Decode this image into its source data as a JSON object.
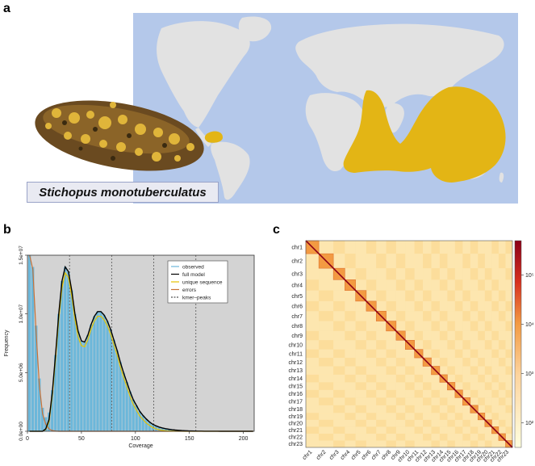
{
  "figure": {
    "panel_a_letter": "a",
    "panel_b_letter": "b",
    "panel_c_letter": "c",
    "species_name": "Stichopus monotuberculatus"
  },
  "colors": {
    "ocean": "#b4c8ea",
    "land": "#e2e2e2",
    "distribution": "#e3b515",
    "plot_bg": "#d3d3d3",
    "histogram": "#6cb7da",
    "full_model": "#000000",
    "unique_sequence": "#e6c200",
    "errors": "#c87137",
    "hic_low": "#fff4cc",
    "hic_mid": "#f39a42",
    "hic_high": "#8b0018"
  },
  "chart_data": [
    {
      "type": "bar",
      "panel": "b",
      "xlabel": "Coverage",
      "ylabel": "Frequency",
      "xlim": [
        0,
        210
      ],
      "ylim": [
        0,
        15000000
      ],
      "x_ticks": [
        "0",
        "50",
        "100",
        "150",
        "200"
      ],
      "y_ticks": [
        "0.0e+00",
        "5.0e+06",
        "1.0e+07",
        "1.5e+07"
      ],
      "y_tick_values": [
        0,
        5000000,
        10000000,
        15000000
      ],
      "x_tick_values": [
        0,
        50,
        100,
        150,
        200
      ],
      "kmer_peaks": [
        39,
        78,
        117,
        156
      ],
      "legend": [
        "observed",
        "full model",
        "unique sequence",
        "errors",
        "kmer–peaks"
      ],
      "legend_position": "top-right",
      "grid": false,
      "coverage": [
        2,
        5,
        8,
        11,
        14,
        17,
        20,
        23,
        26,
        29,
        32,
        35,
        38,
        41,
        44,
        47,
        50,
        53,
        56,
        59,
        62,
        65,
        68,
        71,
        74,
        77,
        80,
        83,
        86,
        89,
        92,
        95,
        98,
        101,
        104,
        107,
        110,
        113,
        116,
        119,
        122,
        125,
        128,
        131,
        134,
        137,
        140,
        143,
        146,
        149,
        152,
        155,
        158,
        161,
        164,
        167,
        170,
        173,
        176,
        179,
        182,
        185,
        188,
        191,
        194,
        197,
        200,
        203,
        206,
        209
      ],
      "observed": [
        15000000,
        14000000,
        9000000,
        4500000,
        2000000,
        1200000,
        1600000,
        3500000,
        6500000,
        10000000,
        12800000,
        14000000,
        13600000,
        12000000,
        10000000,
        8500000,
        7700000,
        7600000,
        8200000,
        9100000,
        9800000,
        10200000,
        10200000,
        9900000,
        9400000,
        8700000,
        7800000,
        6900000,
        5900000,
        5000000,
        4200000,
        3400000,
        2700000,
        2200000,
        1700000,
        1350000,
        1050000,
        800000,
        600000,
        470000,
        360000,
        280000,
        220000,
        170000,
        130000,
        100000,
        80000,
        60000,
        45000,
        35000,
        28000,
        22000,
        17000,
        13000,
        10000,
        8000,
        6000,
        5000,
        4000,
        3000,
        2500,
        2000,
        1500,
        1200,
        1000,
        800,
        600,
        500,
        400,
        300
      ],
      "full_model": [
        0,
        0,
        0,
        0,
        0,
        200000,
        1000000,
        3300000,
        6500000,
        10000000,
        12800000,
        14000000,
        13600000,
        12000000,
        10000000,
        8500000,
        7700000,
        7600000,
        8200000,
        9100000,
        9800000,
        10200000,
        10200000,
        9900000,
        9400000,
        8700000,
        7800000,
        6900000,
        5900000,
        5000000,
        4200000,
        3400000,
        2700000,
        2200000,
        1700000,
        1350000,
        1050000,
        800000,
        600000,
        470000,
        360000,
        280000,
        220000,
        170000,
        130000,
        100000,
        80000,
        60000,
        45000,
        35000,
        28000,
        22000,
        17000,
        13000,
        10000,
        8000,
        6000,
        5000,
        4000,
        3000,
        2500,
        2000,
        1500,
        1200,
        1000,
        800,
        600,
        500,
        400,
        300
      ],
      "unique_sequence": [
        0,
        0,
        0,
        0,
        0,
        150000,
        800000,
        3000000,
        6100000,
        9500000,
        12200000,
        13500000,
        13100000,
        11500000,
        9500000,
        8000000,
        7300000,
        7200000,
        7800000,
        8700000,
        9400000,
        9800000,
        9800000,
        9500000,
        9000000,
        8300000,
        7400000,
        6500000,
        5500000,
        4600000,
        3800000,
        3000000,
        2300000,
        1800000,
        1300000,
        1000000,
        700000,
        500000,
        320000,
        200000,
        130000,
        80000,
        50000,
        30000,
        20000,
        12000,
        8000,
        5000,
        3000,
        2000,
        1000,
        500,
        300,
        200,
        100,
        50,
        30,
        20,
        10,
        0,
        0,
        0,
        0,
        0,
        0,
        0,
        0,
        0,
        0,
        0
      ],
      "errors": [
        15000000,
        13800000,
        8500000,
        4000000,
        1500000,
        600000,
        200000,
        60000,
        20000,
        0,
        0,
        0,
        0,
        0,
        0,
        0,
        0,
        0,
        0,
        0,
        0,
        0,
        0,
        0,
        0,
        0,
        0,
        0,
        0,
        0,
        0,
        0,
        0,
        0,
        0,
        0,
        0,
        0,
        0,
        0,
        0,
        0,
        0,
        0,
        0,
        0,
        0,
        0,
        0,
        0,
        0,
        0,
        0,
        0,
        0,
        0,
        0,
        0,
        0,
        0,
        0,
        0,
        0,
        0,
        0,
        0,
        0,
        0,
        0,
        0
      ]
    },
    {
      "type": "heatmap",
      "panel": "c",
      "chromosomes": [
        "chr1",
        "chr2",
        "chr3",
        "chr4",
        "chr5",
        "chr6",
        "chr7",
        "chr8",
        "chr9",
        "chr10",
        "chr11",
        "chr12",
        "chr13",
        "chr14",
        "chr15",
        "chr16",
        "chr17",
        "chr18",
        "chr19",
        "chr20",
        "chr21",
        "chr22",
        "chr23"
      ],
      "relative_sizes": [
        1.7,
        1.9,
        1.5,
        1.4,
        1.4,
        1.3,
        1.3,
        1.3,
        1.2,
        1.2,
        1.1,
        1.1,
        1.1,
        1.0,
        1.0,
        1.0,
        1.0,
        1.0,
        0.9,
        0.9,
        0.9,
        0.9,
        0.9
      ],
      "colorbar_scale": "log",
      "colorbar_ticks": [
        "10²",
        "10³",
        "10⁴",
        "10⁵"
      ],
      "colorbar_tick_exponents": [
        2,
        3,
        4,
        5
      ],
      "colorbar_range_exponents": [
        1.5,
        5.7
      ]
    }
  ]
}
